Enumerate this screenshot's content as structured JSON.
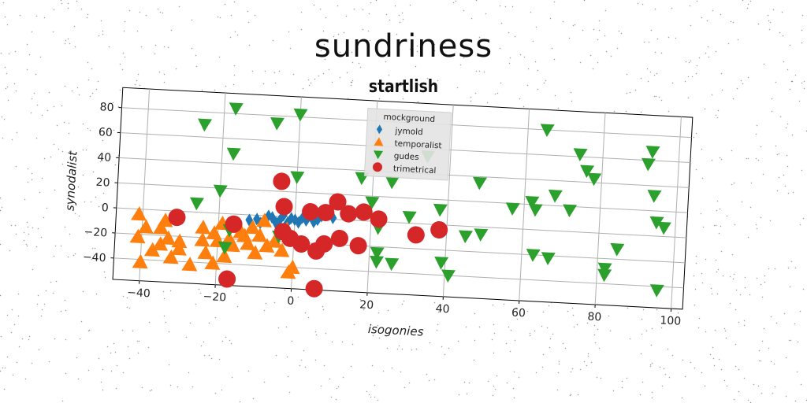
{
  "suptitle": "sundriness",
  "chart_data": {
    "type": "scatter",
    "title": "startlish",
    "xlabel": "isogonies",
    "ylabel": "synodalist",
    "xlim": [
      -47,
      103
    ],
    "ylim": [
      -57,
      96
    ],
    "xticks": [
      -40,
      -20,
      0,
      20,
      40,
      60,
      80,
      100
    ],
    "yticks": [
      -40,
      -20,
      0,
      20,
      40,
      60,
      80
    ],
    "grid": true,
    "legend": {
      "title": "mockground",
      "placement": "top-center"
    },
    "series": [
      {
        "name": "jymold",
        "marker": "diamond",
        "color": "#1f77b4",
        "points": [
          [
            -10,
            -3
          ],
          [
            -8,
            -4
          ],
          [
            -6,
            -1
          ],
          [
            -4,
            -3
          ],
          [
            -2,
            -5
          ],
          [
            0,
            -2
          ],
          [
            2,
            0
          ],
          [
            4,
            2
          ],
          [
            6,
            -1
          ],
          [
            8,
            3
          ],
          [
            10,
            1
          ],
          [
            -9,
            -6
          ],
          [
            -5,
            -5
          ],
          [
            1,
            -4
          ],
          [
            5,
            -3
          ],
          [
            -12,
            -4
          ],
          [
            3,
            -2
          ],
          [
            7,
            2
          ],
          [
            9,
            4
          ],
          [
            -1,
            -1
          ],
          [
            -3,
            1
          ],
          [
            -7,
            0
          ]
        ]
      },
      {
        "name": "temporalist",
        "marker": "triangle-up",
        "color": "#ff7f0e",
        "points": [
          [
            -41,
            -4
          ],
          [
            -41,
            -22
          ],
          [
            -40,
            -42
          ],
          [
            -39,
            -14
          ],
          [
            -37,
            -32
          ],
          [
            -35,
            -14
          ],
          [
            -35,
            -27
          ],
          [
            -34,
            -8
          ],
          [
            -33,
            -22
          ],
          [
            -32,
            -37
          ],
          [
            -30,
            -24
          ],
          [
            -30,
            -30
          ],
          [
            -27,
            -42
          ],
          [
            -24,
            -12
          ],
          [
            -24,
            -22
          ],
          [
            -23,
            -32
          ],
          [
            -21,
            -16
          ],
          [
            -21,
            -40
          ],
          [
            -20,
            -22
          ],
          [
            -19,
            -8
          ],
          [
            -18,
            -34
          ],
          [
            -17,
            -20
          ],
          [
            -16,
            -25
          ],
          [
            -15,
            -10
          ],
          [
            -14,
            -14
          ],
          [
            -13,
            -17
          ],
          [
            -12,
            -23
          ],
          [
            -11,
            -10
          ],
          [
            -10,
            -30
          ],
          [
            -9,
            -16
          ],
          [
            -7,
            -24
          ],
          [
            -5,
            -20
          ],
          [
            -3,
            -27
          ],
          [
            -2,
            -10
          ],
          [
            0,
            -17
          ],
          [
            0,
            -40
          ],
          [
            -1,
            -44
          ],
          [
            -8,
            -4
          ]
        ]
      },
      {
        "name": "gudes",
        "marker": "triangle-down",
        "color": "#2ca02c",
        "points": [
          [
            -25,
            70
          ],
          [
            -17,
            84
          ],
          [
            -6,
            74
          ],
          [
            0,
            82
          ],
          [
            -17,
            48
          ],
          [
            -20,
            18
          ],
          [
            -26,
            7
          ],
          [
            -17,
            -13
          ],
          [
            -18,
            -27
          ],
          [
            0,
            32
          ],
          [
            -4,
            -16
          ],
          [
            17,
            34
          ],
          [
            20,
            15
          ],
          [
            22,
            -5
          ],
          [
            25,
            32
          ],
          [
            22,
            -25
          ],
          [
            22,
            -32
          ],
          [
            26,
            -33
          ],
          [
            30,
            5
          ],
          [
            34,
            54
          ],
          [
            38,
            12
          ],
          [
            39,
            -30
          ],
          [
            41,
            -40
          ],
          [
            45,
            -8
          ],
          [
            49,
            -6
          ],
          [
            48,
            35
          ],
          [
            57,
            16
          ],
          [
            62,
            22
          ],
          [
            63,
            16
          ],
          [
            65,
            80
          ],
          [
            68,
            28
          ],
          [
            63,
            -20
          ],
          [
            67,
            -22
          ],
          [
            72,
            17
          ],
          [
            74,
            62
          ],
          [
            76,
            49
          ],
          [
            78,
            43
          ],
          [
            82,
            -28
          ],
          [
            82,
            -33
          ],
          [
            85,
            -12
          ],
          [
            92,
            57
          ],
          [
            93,
            67
          ],
          [
            94,
            32
          ],
          [
            95,
            11
          ],
          [
            97,
            7
          ],
          [
            96,
            -43
          ]
        ]
      },
      {
        "name": "trimetrical",
        "marker": "circle",
        "color": "#d62728",
        "points": [
          [
            -31,
            -5
          ],
          [
            -16,
            -8
          ],
          [
            -17,
            -52
          ],
          [
            -4,
            28
          ],
          [
            -3,
            8
          ],
          [
            -3,
            -12
          ],
          [
            -1,
            -17
          ],
          [
            2,
            -21
          ],
          [
            4,
            5
          ],
          [
            6,
            -26
          ],
          [
            8,
            -20
          ],
          [
            8,
            5
          ],
          [
            11,
            14
          ],
          [
            12,
            -15
          ],
          [
            14,
            5
          ],
          [
            17,
            -20
          ],
          [
            18,
            7
          ],
          [
            22,
            2
          ],
          [
            32,
            -9
          ],
          [
            38,
            -4
          ],
          [
            6,
            -56
          ]
        ]
      }
    ]
  }
}
